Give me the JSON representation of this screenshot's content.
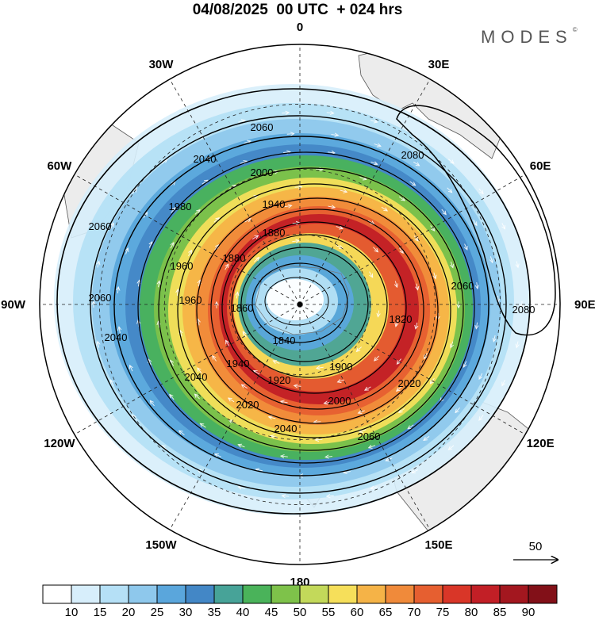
{
  "header": {
    "title": "04/08/2025  00 UTC  + 024 hrs",
    "brand": "MODES",
    "brand_mark": "©"
  },
  "map": {
    "projection": "south-polar stereographic",
    "longitude_labels": [
      {
        "text": "0",
        "lon": 0
      },
      {
        "text": "30E",
        "lon": 30
      },
      {
        "text": "60E",
        "lon": 60
      },
      {
        "text": "90E",
        "lon": 90
      },
      {
        "text": "120E",
        "lon": 120
      },
      {
        "text": "150E",
        "lon": 150
      },
      {
        "text": "180",
        "lon": 180
      },
      {
        "text": "150W",
        "lon": -150
      },
      {
        "text": "120W",
        "lon": -120
      },
      {
        "text": "90W",
        "lon": -90
      },
      {
        "text": "60W",
        "lon": -60
      },
      {
        "text": "30W",
        "lon": -30
      }
    ],
    "contour_labels": [
      "2080",
      "2080",
      "2060",
      "2060",
      "2060",
      "2060",
      "2060",
      "2040",
      "2040",
      "2040",
      "2040",
      "2020",
      "2020",
      "2000",
      "2000",
      "1980",
      "1960",
      "1960",
      "1940",
      "1940",
      "1920",
      "1900",
      "1880",
      "1880",
      "1860",
      "1840",
      "1820"
    ],
    "wind_reference": {
      "value": "50"
    }
  },
  "colorbar": {
    "colors": [
      "#ffffff",
      "#d7eefb",
      "#b5e0f6",
      "#8ec8ec",
      "#5aa6dc",
      "#4387c6",
      "#47a398",
      "#4ab35a",
      "#7ec24a",
      "#c3d95a",
      "#f6df5a",
      "#f5b347",
      "#f08a3a",
      "#e65f30",
      "#d93628",
      "#c21f26",
      "#a3171f",
      "#821018"
    ],
    "labels": [
      "10",
      "15",
      "20",
      "25",
      "30",
      "35",
      "40",
      "45",
      "50",
      "55",
      "60",
      "65",
      "70",
      "75",
      "80",
      "85",
      "90"
    ]
  }
}
